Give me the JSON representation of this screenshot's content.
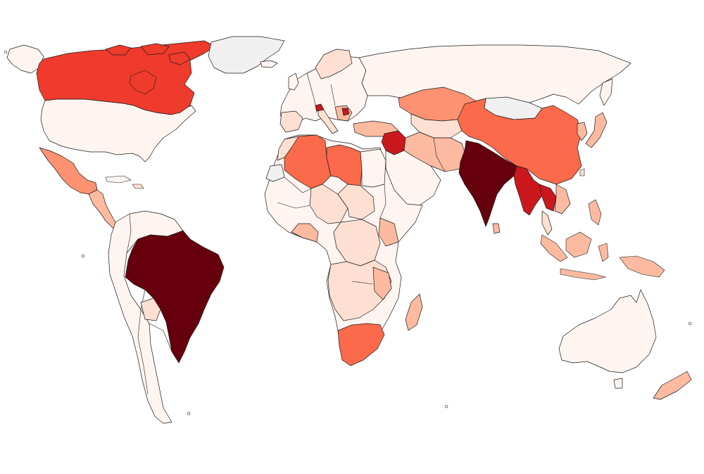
{
  "map": {
    "type": "choropleth",
    "palette": {
      "nodata": "#f0f0f0",
      "c0": "#fff5f0",
      "c1": "#fee0d2",
      "c2": "#fcbba1",
      "c3": "#fc9272",
      "c4": "#fb6a4a",
      "c5": "#ef3b2c",
      "c6": "#cb181d",
      "c7": "#67000d"
    },
    "regions": [
      {
        "name": "canada",
        "class": "c5"
      },
      {
        "name": "greenland",
        "class": "nodata"
      },
      {
        "name": "usa",
        "class": "c0"
      },
      {
        "name": "mexico",
        "class": "c3"
      },
      {
        "name": "central-america",
        "class": "c2"
      },
      {
        "name": "brazil",
        "class": "c7"
      },
      {
        "name": "south-america-rest",
        "class": "c0"
      },
      {
        "name": "russia",
        "class": "c0"
      },
      {
        "name": "kazakhstan",
        "class": "c3"
      },
      {
        "name": "mongolia",
        "class": "nodata"
      },
      {
        "name": "china",
        "class": "c4"
      },
      {
        "name": "india",
        "class": "c7"
      },
      {
        "name": "myanmar",
        "class": "c6"
      },
      {
        "name": "syria",
        "class": "c6"
      },
      {
        "name": "algeria",
        "class": "c4"
      },
      {
        "name": "libya",
        "class": "c4"
      },
      {
        "name": "south-africa",
        "class": "c4"
      },
      {
        "name": "australia",
        "class": "c0"
      },
      {
        "name": "western-sahara",
        "class": "nodata"
      }
    ]
  }
}
